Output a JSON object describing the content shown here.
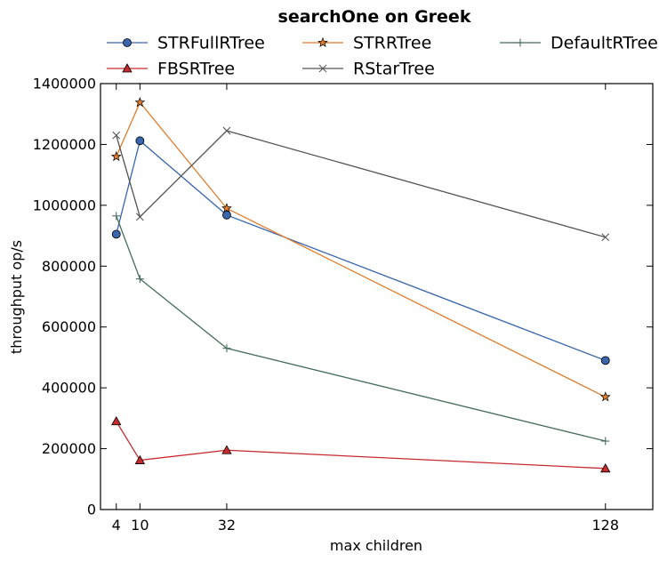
{
  "chart_data": {
    "type": "line",
    "title": "searchOne on Greek",
    "xlabel": "max children",
    "ylabel": "throughput op/s",
    "x": [
      4,
      10,
      32,
      128
    ],
    "xticks": [
      4,
      10,
      32,
      128
    ],
    "xlim": [
      0,
      140
    ],
    "ylim": [
      0,
      1400000
    ],
    "yticks": [
      0,
      200000,
      400000,
      600000,
      800000,
      1000000,
      1200000,
      1400000
    ],
    "legend_location": "top-center",
    "grid": false,
    "series": [
      {
        "name": "STRFullRTree",
        "marker": "circle",
        "color": "#3a66ae",
        "values": [
          905000,
          1212000,
          968000,
          490000
        ]
      },
      {
        "name": "STRRTree",
        "marker": "star",
        "color": "#e07b2b",
        "values": [
          1160000,
          1338000,
          990000,
          370000
        ]
      },
      {
        "name": "DefaultRTree",
        "marker": "plus",
        "color": "#466d5c",
        "values": [
          965000,
          758000,
          530000,
          225000
        ]
      },
      {
        "name": "FBSRTree",
        "marker": "triangle",
        "color": "#c62a2d",
        "values": [
          290000,
          162000,
          195000,
          135000
        ]
      },
      {
        "name": "RStarTree",
        "marker": "x",
        "color": "#555555",
        "values": [
          1230000,
          962000,
          1245000,
          895000
        ]
      }
    ]
  }
}
